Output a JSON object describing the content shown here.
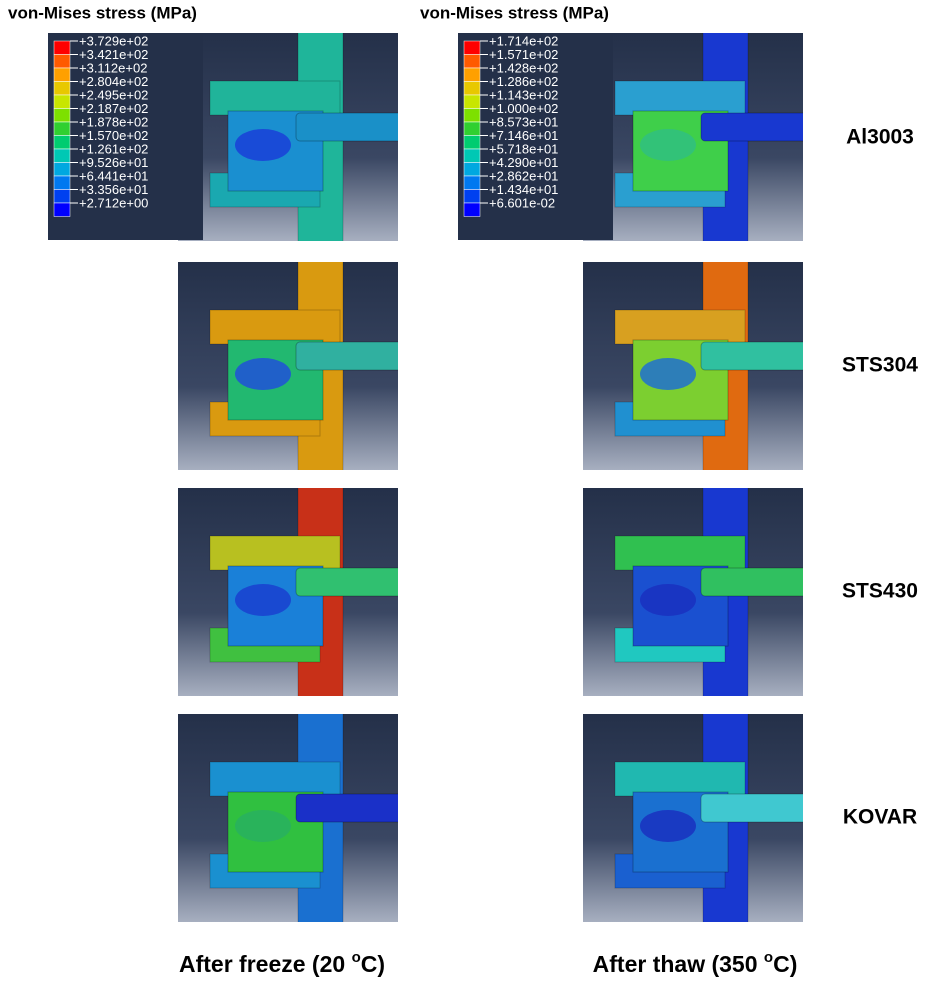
{
  "headers": [
    "von-Mises stress (MPa)",
    "von-Mises stress (MPa)"
  ],
  "legends": [
    {
      "values": [
        "+3.729e+02",
        "+3.421e+02",
        "+3.112e+02",
        "+2.804e+02",
        "+2.495e+02",
        "+2.187e+02",
        "+1.878e+02",
        "+1.570e+02",
        "+1.261e+02",
        "+9.526e+01",
        "+6.441e+01",
        "+3.356e+01",
        "+2.712e+00"
      ]
    },
    {
      "values": [
        "+1.714e+02",
        "+1.571e+02",
        "+1.428e+02",
        "+1.286e+02",
        "+1.143e+02",
        "+1.000e+02",
        "+8.573e+01",
        "+7.146e+01",
        "+5.718e+01",
        "+4.290e+01",
        "+2.862e+01",
        "+1.434e+01",
        "+6.601e-02"
      ]
    }
  ],
  "rows": [
    "Al3003",
    "STS304",
    "STS430",
    "KOVAR"
  ],
  "columns": [
    {
      "text": "After freeze (20 ",
      "sup": "o",
      "tail": "C)"
    },
    {
      "text": "After thaw (350 ",
      "sup": "o",
      "tail": "C)"
    }
  ]
}
